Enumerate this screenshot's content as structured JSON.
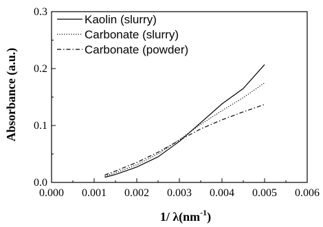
{
  "chart_data": {
    "type": "line",
    "xlabel": "1/ λ(nm",
    "xlabel_sup": "-1",
    "xlabel_close": ")",
    "ylabel": "Absorbance (a.u.)",
    "xlim": [
      0.0,
      0.006
    ],
    "ylim": [
      0.0,
      0.3
    ],
    "x_ticks": [
      "0.000",
      "0.001",
      "0.002",
      "0.003",
      "0.004",
      "0.005",
      "0.006"
    ],
    "y_ticks": [
      "0.0",
      "0.1",
      "0.2",
      "0.3"
    ],
    "grid": false,
    "legend_position": "top-left",
    "series": [
      {
        "name": "Kaolin  (slurry)",
        "style": "solid",
        "x": [
          0.00125,
          0.0015,
          0.002,
          0.0025,
          0.003,
          0.0035,
          0.004,
          0.0045,
          0.005
        ],
        "y": [
          0.009,
          0.014,
          0.027,
          0.045,
          0.072,
          0.105,
          0.138,
          0.165,
          0.207
        ]
      },
      {
        "name": "Carbonate (slurry)",
        "style": "dotted",
        "x": [
          0.00125,
          0.0015,
          0.002,
          0.0025,
          0.003,
          0.0035,
          0.004,
          0.0045,
          0.005
        ],
        "y": [
          0.011,
          0.017,
          0.031,
          0.05,
          0.075,
          0.102,
          0.126,
          0.149,
          0.175
        ]
      },
      {
        "name": "Carbonate (powder)",
        "style": "dashdot",
        "x": [
          0.00125,
          0.0015,
          0.002,
          0.0025,
          0.003,
          0.0035,
          0.004,
          0.0045,
          0.005
        ],
        "y": [
          0.013,
          0.02,
          0.035,
          0.053,
          0.074,
          0.094,
          0.11,
          0.124,
          0.137
        ]
      }
    ]
  }
}
